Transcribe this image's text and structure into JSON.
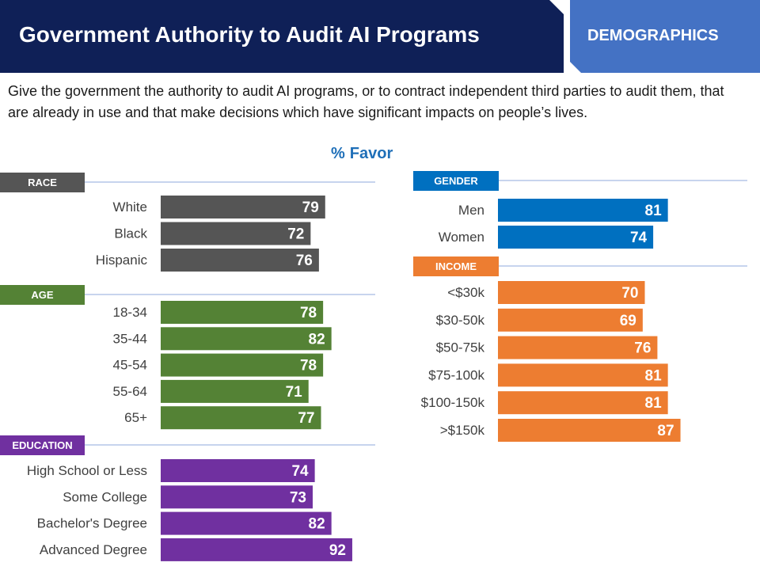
{
  "header": {
    "title": "Government Authority to Audit AI Programs",
    "tab_label": "DEMOGRAPHICS",
    "bar_color": "#0f2057",
    "tab_color": "#4472c4"
  },
  "subtitle": "Give the government the authority to audit AI programs, or to contract independent third parties to audit them, that are already in use and that make decisions which have significant impacts on people’s lives.",
  "measure": {
    "symbol": "%",
    "label": "Favor",
    "color": "#1f6fb8"
  },
  "chart_data": {
    "type": "bar",
    "orientation": "horizontal",
    "title": "",
    "xlabel": "% Favor",
    "ylabel": "",
    "xlim": [
      0,
      100
    ],
    "grid": false,
    "groups": [
      {
        "name": "RACE",
        "color": "#555555",
        "categories": [
          "White",
          "Black",
          "Hispanic"
        ],
        "values": [
          79,
          72,
          76
        ]
      },
      {
        "name": "AGE",
        "color": "#548235",
        "categories": [
          "18-34",
          "35-44",
          "45-54",
          "55-64",
          "65+"
        ],
        "values": [
          78,
          82,
          78,
          71,
          77
        ]
      },
      {
        "name": "EDUCATION",
        "color": "#7030a0",
        "categories": [
          "High School or Less",
          "Some College",
          "Bachelor's Degree",
          "Advanced Degree"
        ],
        "values": [
          74,
          73,
          82,
          92
        ]
      },
      {
        "name": "GENDER",
        "color": "#0070c0",
        "categories": [
          "Men",
          "Women"
        ],
        "values": [
          81,
          74
        ]
      },
      {
        "name": "INCOME",
        "color": "#ed7d31",
        "categories": [
          "<$30k",
          "$30-50k",
          "$50-75k",
          "$75-100k",
          "$100-150k",
          ">$150k"
        ],
        "values": [
          70,
          69,
          76,
          81,
          81,
          87
        ]
      }
    ]
  }
}
